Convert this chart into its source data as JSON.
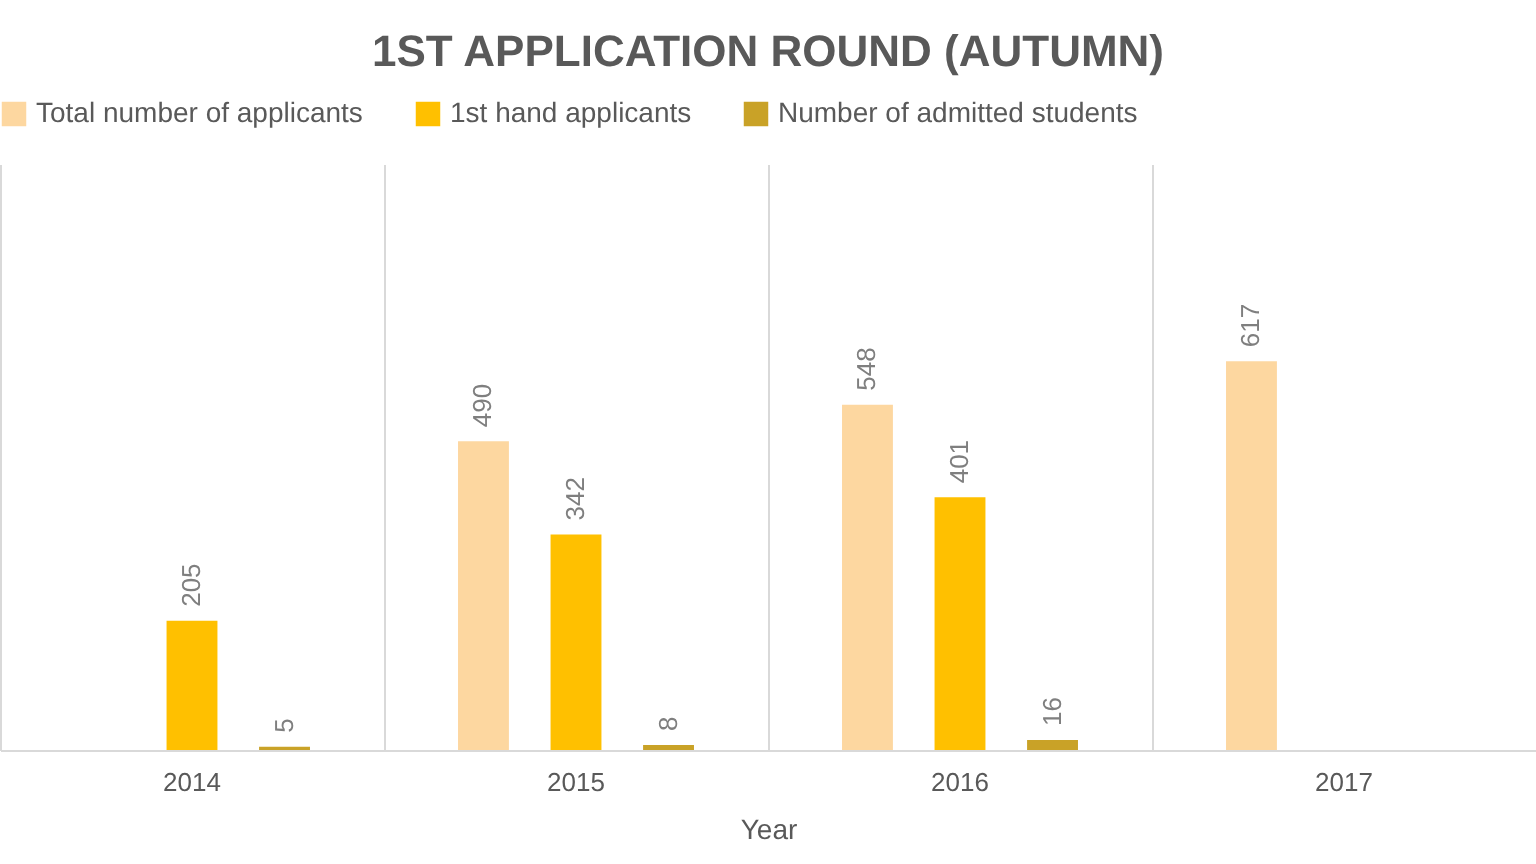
{
  "chart_data": {
    "type": "bar",
    "title": "1ST APPLICATION ROUND (AUTUMN)",
    "xlabel": "Year",
    "categories": [
      "2014",
      "2015",
      "2016",
      "2017"
    ],
    "series": [
      {
        "name": "Total number of applicants",
        "color": "#fdd7a0",
        "values": [
          null,
          490,
          548,
          617
        ]
      },
      {
        "name": "1st hand applicants",
        "color": "#ffc000",
        "values": [
          205,
          342,
          401,
          null
        ]
      },
      {
        "name": "Number of admitted students",
        "color": "#c9a227",
        "values": [
          5,
          8,
          16,
          null
        ]
      }
    ],
    "ylim": [
      0,
      930
    ],
    "tick_labels": "x",
    "data_labels": true,
    "grid": "x",
    "legend": "top"
  }
}
